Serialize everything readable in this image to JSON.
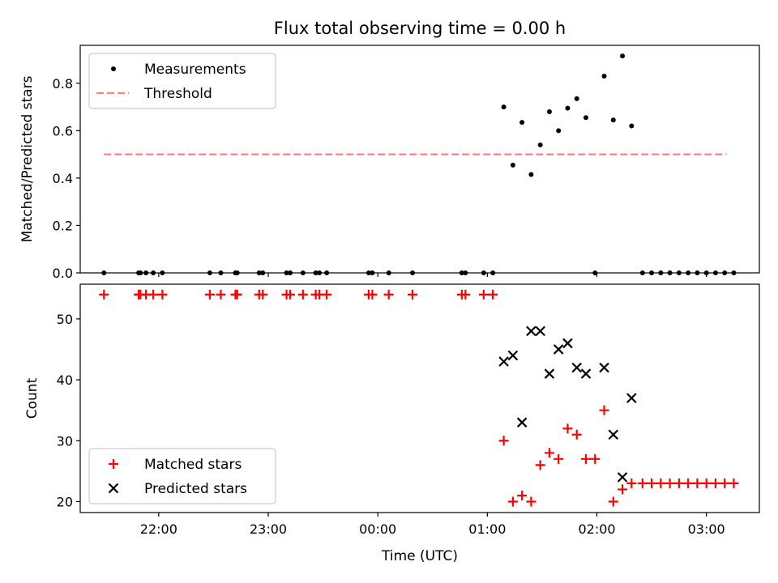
{
  "chart_data": {
    "type": "scatter",
    "title": "Flux total observing time = 0.00 h",
    "xlabel": "Time (UTC)",
    "xlim": [
      "21:17",
      "03:29"
    ],
    "xticks": [
      "22:00",
      "23:00",
      "00:00",
      "01:00",
      "02:00",
      "03:00"
    ],
    "panels": [
      {
        "ylabel": "Matched/Predicted stars",
        "ylim": [
          0,
          0.96
        ],
        "yticks": [
          "0.0",
          "0.2",
          "0.4",
          "0.6",
          "0.8"
        ],
        "legend": {
          "placement": "top-left"
        },
        "threshold": {
          "name": "Threshold",
          "y": 0.5,
          "x_range": [
            "21:30",
            "03:11"
          ],
          "color": "#ff7f7f"
        },
        "series": [
          {
            "name": "Measurements",
            "color": "#000000",
            "marker": "dot",
            "points": [
              [
                "21:30",
                0
              ],
              [
                "21:49",
                0
              ],
              [
                "21:50",
                0
              ],
              [
                "21:53",
                0
              ],
              [
                "21:57",
                0
              ],
              [
                "22:02",
                0
              ],
              [
                "22:28",
                0
              ],
              [
                "22:34",
                0
              ],
              [
                "22:42",
                0
              ],
              [
                "22:43",
                0
              ],
              [
                "22:55",
                0
              ],
              [
                "22:57",
                0
              ],
              [
                "23:10",
                0
              ],
              [
                "23:12",
                0
              ],
              [
                "23:19",
                0
              ],
              [
                "23:26",
                0
              ],
              [
                "23:28",
                0
              ],
              [
                "23:32",
                0
              ],
              [
                "23:55",
                0
              ],
              [
                "23:57",
                0
              ],
              [
                "00:06",
                0
              ],
              [
                "00:19",
                0
              ],
              [
                "00:46",
                0
              ],
              [
                "00:48",
                0
              ],
              [
                "00:58",
                0
              ],
              [
                "01:03",
                0
              ],
              [
                "01:09",
                0.7
              ],
              [
                "01:14",
                0.455
              ],
              [
                "01:19",
                0.635
              ],
              [
                "01:24",
                0.415
              ],
              [
                "01:29",
                0.54
              ],
              [
                "01:34",
                0.68
              ],
              [
                "01:39",
                0.6
              ],
              [
                "01:44",
                0.695
              ],
              [
                "01:49",
                0.735
              ],
              [
                "01:54",
                0.655
              ],
              [
                "01:59",
                0
              ],
              [
                "02:04",
                0.83
              ],
              [
                "02:09",
                0.645
              ],
              [
                "02:14",
                0.915
              ],
              [
                "02:19",
                0.62
              ],
              [
                "02:25",
                0
              ],
              [
                "02:30",
                0
              ],
              [
                "02:35",
                0
              ],
              [
                "02:40",
                0
              ],
              [
                "02:45",
                0
              ],
              [
                "02:50",
                0
              ],
              [
                "02:55",
                0
              ],
              [
                "03:00",
                0
              ],
              [
                "03:05",
                0
              ],
              [
                "03:10",
                0
              ],
              [
                "03:15",
                0
              ]
            ]
          }
        ]
      },
      {
        "ylabel": "Count",
        "ylim": [
          18.2,
          55.7
        ],
        "yticks": [
          "20",
          "30",
          "40",
          "50"
        ],
        "legend": {
          "placement": "bottom-left"
        },
        "series": [
          {
            "name": "Matched stars",
            "color": "#ff0000",
            "marker": "plus",
            "points": [
              [
                "21:30",
                54
              ],
              [
                "21:49",
                54
              ],
              [
                "21:50",
                54
              ],
              [
                "21:53",
                54
              ],
              [
                "21:57",
                54
              ],
              [
                "22:02",
                54
              ],
              [
                "22:28",
                54
              ],
              [
                "22:34",
                54
              ],
              [
                "22:42",
                54
              ],
              [
                "22:43",
                54
              ],
              [
                "22:55",
                54
              ],
              [
                "22:57",
                54
              ],
              [
                "23:10",
                54
              ],
              [
                "23:12",
                54
              ],
              [
                "23:19",
                54
              ],
              [
                "23:26",
                54
              ],
              [
                "23:28",
                54
              ],
              [
                "23:32",
                54
              ],
              [
                "23:55",
                54
              ],
              [
                "23:57",
                54
              ],
              [
                "00:06",
                54
              ],
              [
                "00:19",
                54
              ],
              [
                "00:46",
                54
              ],
              [
                "00:48",
                54
              ],
              [
                "00:58",
                54
              ],
              [
                "01:03",
                54
              ],
              [
                "01:09",
                30
              ],
              [
                "01:14",
                20
              ],
              [
                "01:19",
                21
              ],
              [
                "01:24",
                20
              ],
              [
                "01:29",
                26
              ],
              [
                "01:34",
                28
              ],
              [
                "01:39",
                27
              ],
              [
                "01:44",
                32
              ],
              [
                "01:49",
                31
              ],
              [
                "01:54",
                27
              ],
              [
                "01:59",
                27
              ],
              [
                "02:04",
                35
              ],
              [
                "02:09",
                20
              ],
              [
                "02:14",
                22
              ],
              [
                "02:19",
                23
              ],
              [
                "02:25",
                23
              ],
              [
                "02:30",
                23
              ],
              [
                "02:35",
                23
              ],
              [
                "02:40",
                23
              ],
              [
                "02:45",
                23
              ],
              [
                "02:50",
                23
              ],
              [
                "02:55",
                23
              ],
              [
                "03:00",
                23
              ],
              [
                "03:05",
                23
              ],
              [
                "03:10",
                23
              ],
              [
                "03:15",
                23
              ]
            ]
          },
          {
            "name": "Predicted stars",
            "color": "#000000",
            "marker": "x",
            "points": [
              [
                "01:09",
                43
              ],
              [
                "01:14",
                44
              ],
              [
                "01:19",
                33
              ],
              [
                "01:24",
                48
              ],
              [
                "01:29",
                48
              ],
              [
                "01:34",
                41
              ],
              [
                "01:39",
                45
              ],
              [
                "01:44",
                46
              ],
              [
                "01:49",
                42
              ],
              [
                "01:54",
                41
              ],
              [
                "02:04",
                42
              ],
              [
                "02:09",
                31
              ],
              [
                "02:14",
                24
              ],
              [
                "02:19",
                37
              ]
            ]
          }
        ]
      }
    ]
  }
}
